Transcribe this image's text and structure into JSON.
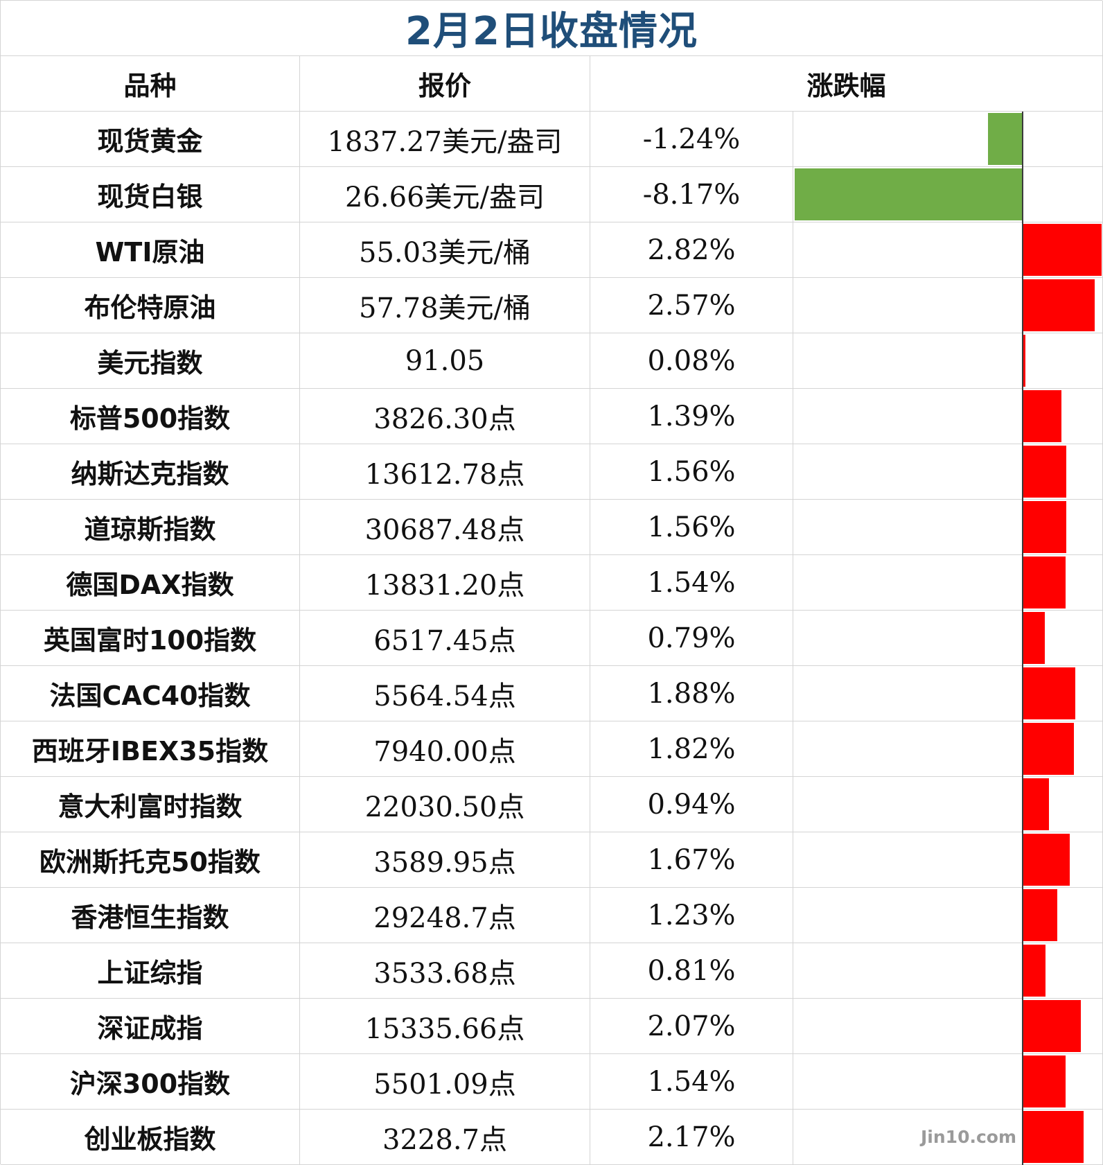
{
  "title": "2月2日收盘情况",
  "title_color": "#1f4e79",
  "headers": {
    "name": "品种",
    "price": "报价",
    "change": "涨跌幅"
  },
  "colors": {
    "up": "#ff0000",
    "down": "#70ad47"
  },
  "rows": [
    {
      "name": "现货黄金",
      "price": "1837.27美元/盎司",
      "change": "-1.24%"
    },
    {
      "name": "现货白银",
      "price": "26.66美元/盎司",
      "change": "-8.17%"
    },
    {
      "name": "WTI原油",
      "price": "55.03美元/桶",
      "change": "2.82%"
    },
    {
      "name": "布伦特原油",
      "price": "57.78美元/桶",
      "change": "2.57%"
    },
    {
      "name": "美元指数",
      "price": "91.05",
      "change": "0.08%"
    },
    {
      "name": "标普500指数",
      "price": "3826.30点",
      "change": "1.39%"
    },
    {
      "name": "纳斯达克指数",
      "price": "13612.78点",
      "change": "1.56%"
    },
    {
      "name": "道琼斯指数",
      "price": "30687.48点",
      "change": "1.56%"
    },
    {
      "name": "德国DAX指数",
      "price": "13831.20点",
      "change": "1.54%"
    },
    {
      "name": "英国富时100指数",
      "price": "6517.45点",
      "change": "0.79%"
    },
    {
      "name": "法国CAC40指数",
      "price": "5564.54点",
      "change": "1.88%"
    },
    {
      "name": "西班牙IBEX35指数",
      "price": "7940.00点",
      "change": "1.82%"
    },
    {
      "name": "意大利富时指数",
      "price": "22030.50点",
      "change": "0.94%"
    },
    {
      "name": "欧洲斯托克50指数",
      "price": "3589.95点",
      "change": "1.67%"
    },
    {
      "name": "香港恒生指数",
      "price": "29248.7点",
      "change": "1.23%"
    },
    {
      "name": "上证综指",
      "price": "3533.68点",
      "change": "0.81%"
    },
    {
      "name": "深证成指",
      "price": "15335.66点",
      "change": "2.07%"
    },
    {
      "name": "沪深300指数",
      "price": "5501.09点",
      "change": "1.54%"
    },
    {
      "name": "创业板指数",
      "price": "3228.7点",
      "change": "2.17%"
    }
  ],
  "chart_data": {
    "type": "bar",
    "categories": [
      "现货黄金",
      "现货白银",
      "WTI原油",
      "布伦特原油",
      "美元指数",
      "标普500指数",
      "纳斯达克指数",
      "道琼斯指数",
      "德国DAX指数",
      "英国富时100指数",
      "法国CAC40指数",
      "西班牙IBEX35指数",
      "意大利富时指数",
      "欧洲斯托克50指数",
      "香港恒生指数",
      "上证综指",
      "深证成指",
      "沪深300指数",
      "创业板指数"
    ],
    "values": [
      -1.24,
      -8.17,
      2.82,
      2.57,
      0.08,
      1.39,
      1.56,
      1.56,
      1.54,
      0.79,
      1.88,
      1.82,
      0.94,
      1.67,
      1.23,
      0.81,
      2.07,
      1.54,
      2.17
    ],
    "orientation": "horizontal",
    "xlim": [
      -8.17,
      2.82
    ]
  },
  "watermark": "Jin10.com"
}
